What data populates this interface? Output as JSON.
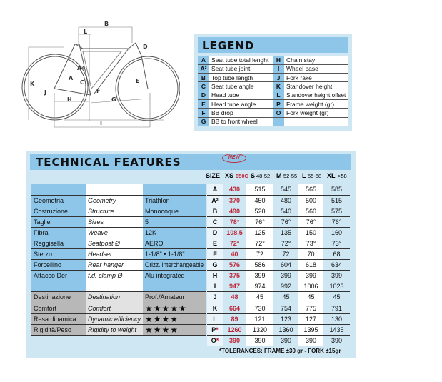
{
  "diagram": {
    "labels": [
      "A",
      "A²",
      "B",
      "C",
      "D",
      "E",
      "F",
      "G",
      "H",
      "I",
      "J",
      "K",
      "L"
    ]
  },
  "legend": {
    "title": "LEGEND",
    "rows": [
      [
        {
          "k": "A",
          "v": "Seat tube total lenght"
        },
        {
          "k": "H",
          "v": "Chain stay"
        }
      ],
      [
        {
          "k": "A²",
          "v": "Seat tube joint"
        },
        {
          "k": "I",
          "v": "Wheel base"
        }
      ],
      [
        {
          "k": "B",
          "v": "Top tube length"
        },
        {
          "k": "J",
          "v": "Fork rake"
        }
      ],
      [
        {
          "k": "C",
          "v": "Seat tube angle"
        },
        {
          "k": "K",
          "v": "Standover height"
        }
      ],
      [
        {
          "k": "D",
          "v": "Head tube"
        },
        {
          "k": "L",
          "v": "Standover height offset"
        }
      ],
      [
        {
          "k": "E",
          "v": "Head tube angle"
        },
        {
          "k": "P",
          "v": "Frame weight (gr)"
        }
      ],
      [
        {
          "k": "F",
          "v": "BB drop"
        },
        {
          "k": "O",
          "v": "Fork weight (gr)"
        }
      ],
      [
        {
          "k": "G",
          "v": "BB to front wheel"
        },
        {
          "k": "",
          "v": ""
        }
      ]
    ]
  },
  "tech": {
    "title": "TECHNICAL FEATURES",
    "badge": "NEW",
    "size_header": {
      "label": "SIZE",
      "xs": "XS",
      "xs_sub": "650C",
      "s": "S",
      "s_sub": "48-52",
      "m": "M",
      "m_sub": "52-55",
      "l": "L",
      "l_sub": "55-58",
      "xl": "XL",
      "xl_sub": ">58"
    },
    "features": [
      {
        "it": "",
        "en": "",
        "val": ""
      },
      {
        "it": "Geometria",
        "en": "Geometry",
        "val": "Triathlon"
      },
      {
        "it": "Costruzione",
        "en": "Structure",
        "val": "Monocoque"
      },
      {
        "it": "Taglie",
        "en": "Sizes",
        "val": "5"
      },
      {
        "it": "Fibra",
        "en": "Weave",
        "val": "12K"
      },
      {
        "it": "Reggisella",
        "en": "Seatpost Ø",
        "val": "AERO"
      },
      {
        "it": "Sterzo",
        "en": "Headset",
        "val": "1-1/8\" • 1-1/8\""
      },
      {
        "it": "Forcellino",
        "en": "Rear hanger",
        "val": "Orizz. interchangeable"
      },
      {
        "it": "Attacco Der",
        "en": "f.d. clamp Ø",
        "val": "Alu integrated"
      },
      {
        "it": "",
        "en": "",
        "val": ""
      }
    ],
    "ratings": [
      {
        "it": "Destinazione",
        "en": "Destination",
        "val": "Prof./Amateur"
      },
      {
        "it": "Comfort",
        "en": "Comfort",
        "stars": "★★★★★",
        "count": 5
      },
      {
        "it": "Resa dinamica",
        "en": "Dynamic efficiency",
        "stars": "★★★★",
        "count": 4
      },
      {
        "it": "Rigidità/Peso",
        "en": "Rigidity to weight",
        "stars": "★★★★",
        "count": 4
      }
    ],
    "sizes": [
      {
        "k": "A",
        "v": [
          "430",
          "515",
          "545",
          "565",
          "585"
        ]
      },
      {
        "k": "A²",
        "v": [
          "370",
          "450",
          "480",
          "500",
          "515"
        ]
      },
      {
        "k": "B",
        "v": [
          "490",
          "520",
          "540",
          "560",
          "575"
        ]
      },
      {
        "k": "C",
        "v": [
          "78°",
          "76°",
          "76°",
          "76°",
          "76°"
        ]
      },
      {
        "k": "D",
        "v": [
          "108,5",
          "125",
          "135",
          "150",
          "160"
        ]
      },
      {
        "k": "E",
        "v": [
          "72°",
          "72°",
          "72°",
          "73°",
          "73°"
        ]
      },
      {
        "k": "F",
        "v": [
          "40",
          "72",
          "72",
          "70",
          "68"
        ]
      },
      {
        "k": "G",
        "v": [
          "576",
          "586",
          "604",
          "618",
          "634"
        ]
      },
      {
        "k": "H",
        "v": [
          "375",
          "399",
          "399",
          "399",
          "399"
        ]
      },
      {
        "k": "I",
        "v": [
          "947",
          "974",
          "992",
          "1006",
          "1023"
        ]
      },
      {
        "k": "J",
        "v": [
          "48",
          "45",
          "45",
          "45",
          "45"
        ]
      },
      {
        "k": "K",
        "v": [
          "664",
          "730",
          "754",
          "775",
          "791"
        ]
      },
      {
        "k": "L",
        "v": [
          "89",
          "121",
          "123",
          "127",
          "130"
        ]
      },
      {
        "k": "P*",
        "v": [
          "1260",
          "1320",
          "1360",
          "1395",
          "1435"
        ]
      },
      {
        "k": "O*",
        "v": [
          "390",
          "390",
          "390",
          "390",
          "390"
        ]
      }
    ],
    "tolerances": "*TOLERANCES: FRAME ±30 gr - FORK ±15gr"
  },
  "colors": {
    "accent": "#8ec6e9",
    "panel": "#cfe6f3",
    "red": "#c0283a"
  }
}
